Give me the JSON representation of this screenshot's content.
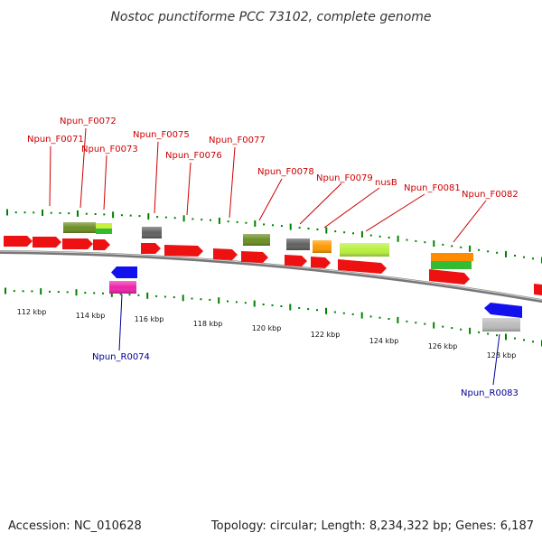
{
  "title": "Nostoc punctiforme PCC 73102, complete genome",
  "footer": {
    "accession": "Accession: NC_010628",
    "summary": "Topology: circular; Length: 8,234,322 bp; Genes: 6,187"
  },
  "colors": {
    "forward_label": "#cc0000",
    "reverse_label": "#000099",
    "backbone": "#888888",
    "tick": "#008000"
  },
  "scale_labels": [
    "112 kbp",
    "114 kbp",
    "116 kbp",
    "118 kbp",
    "120 kbp",
    "122 kbp",
    "124 kbp",
    "126 kbp",
    "128 kbp"
  ],
  "forward_labels": [
    "Npun_F0071",
    "Npun_F0072",
    "Npun_F0073",
    "Npun_F0075",
    "Npun_F0076",
    "Npun_F0077",
    "Npun_F0078",
    "Npun_F0079",
    "nusB",
    "Npun_F0081",
    "Npun_F0082"
  ],
  "reverse_labels": [
    "Npun_R0074",
    "Npun_R0083"
  ]
}
